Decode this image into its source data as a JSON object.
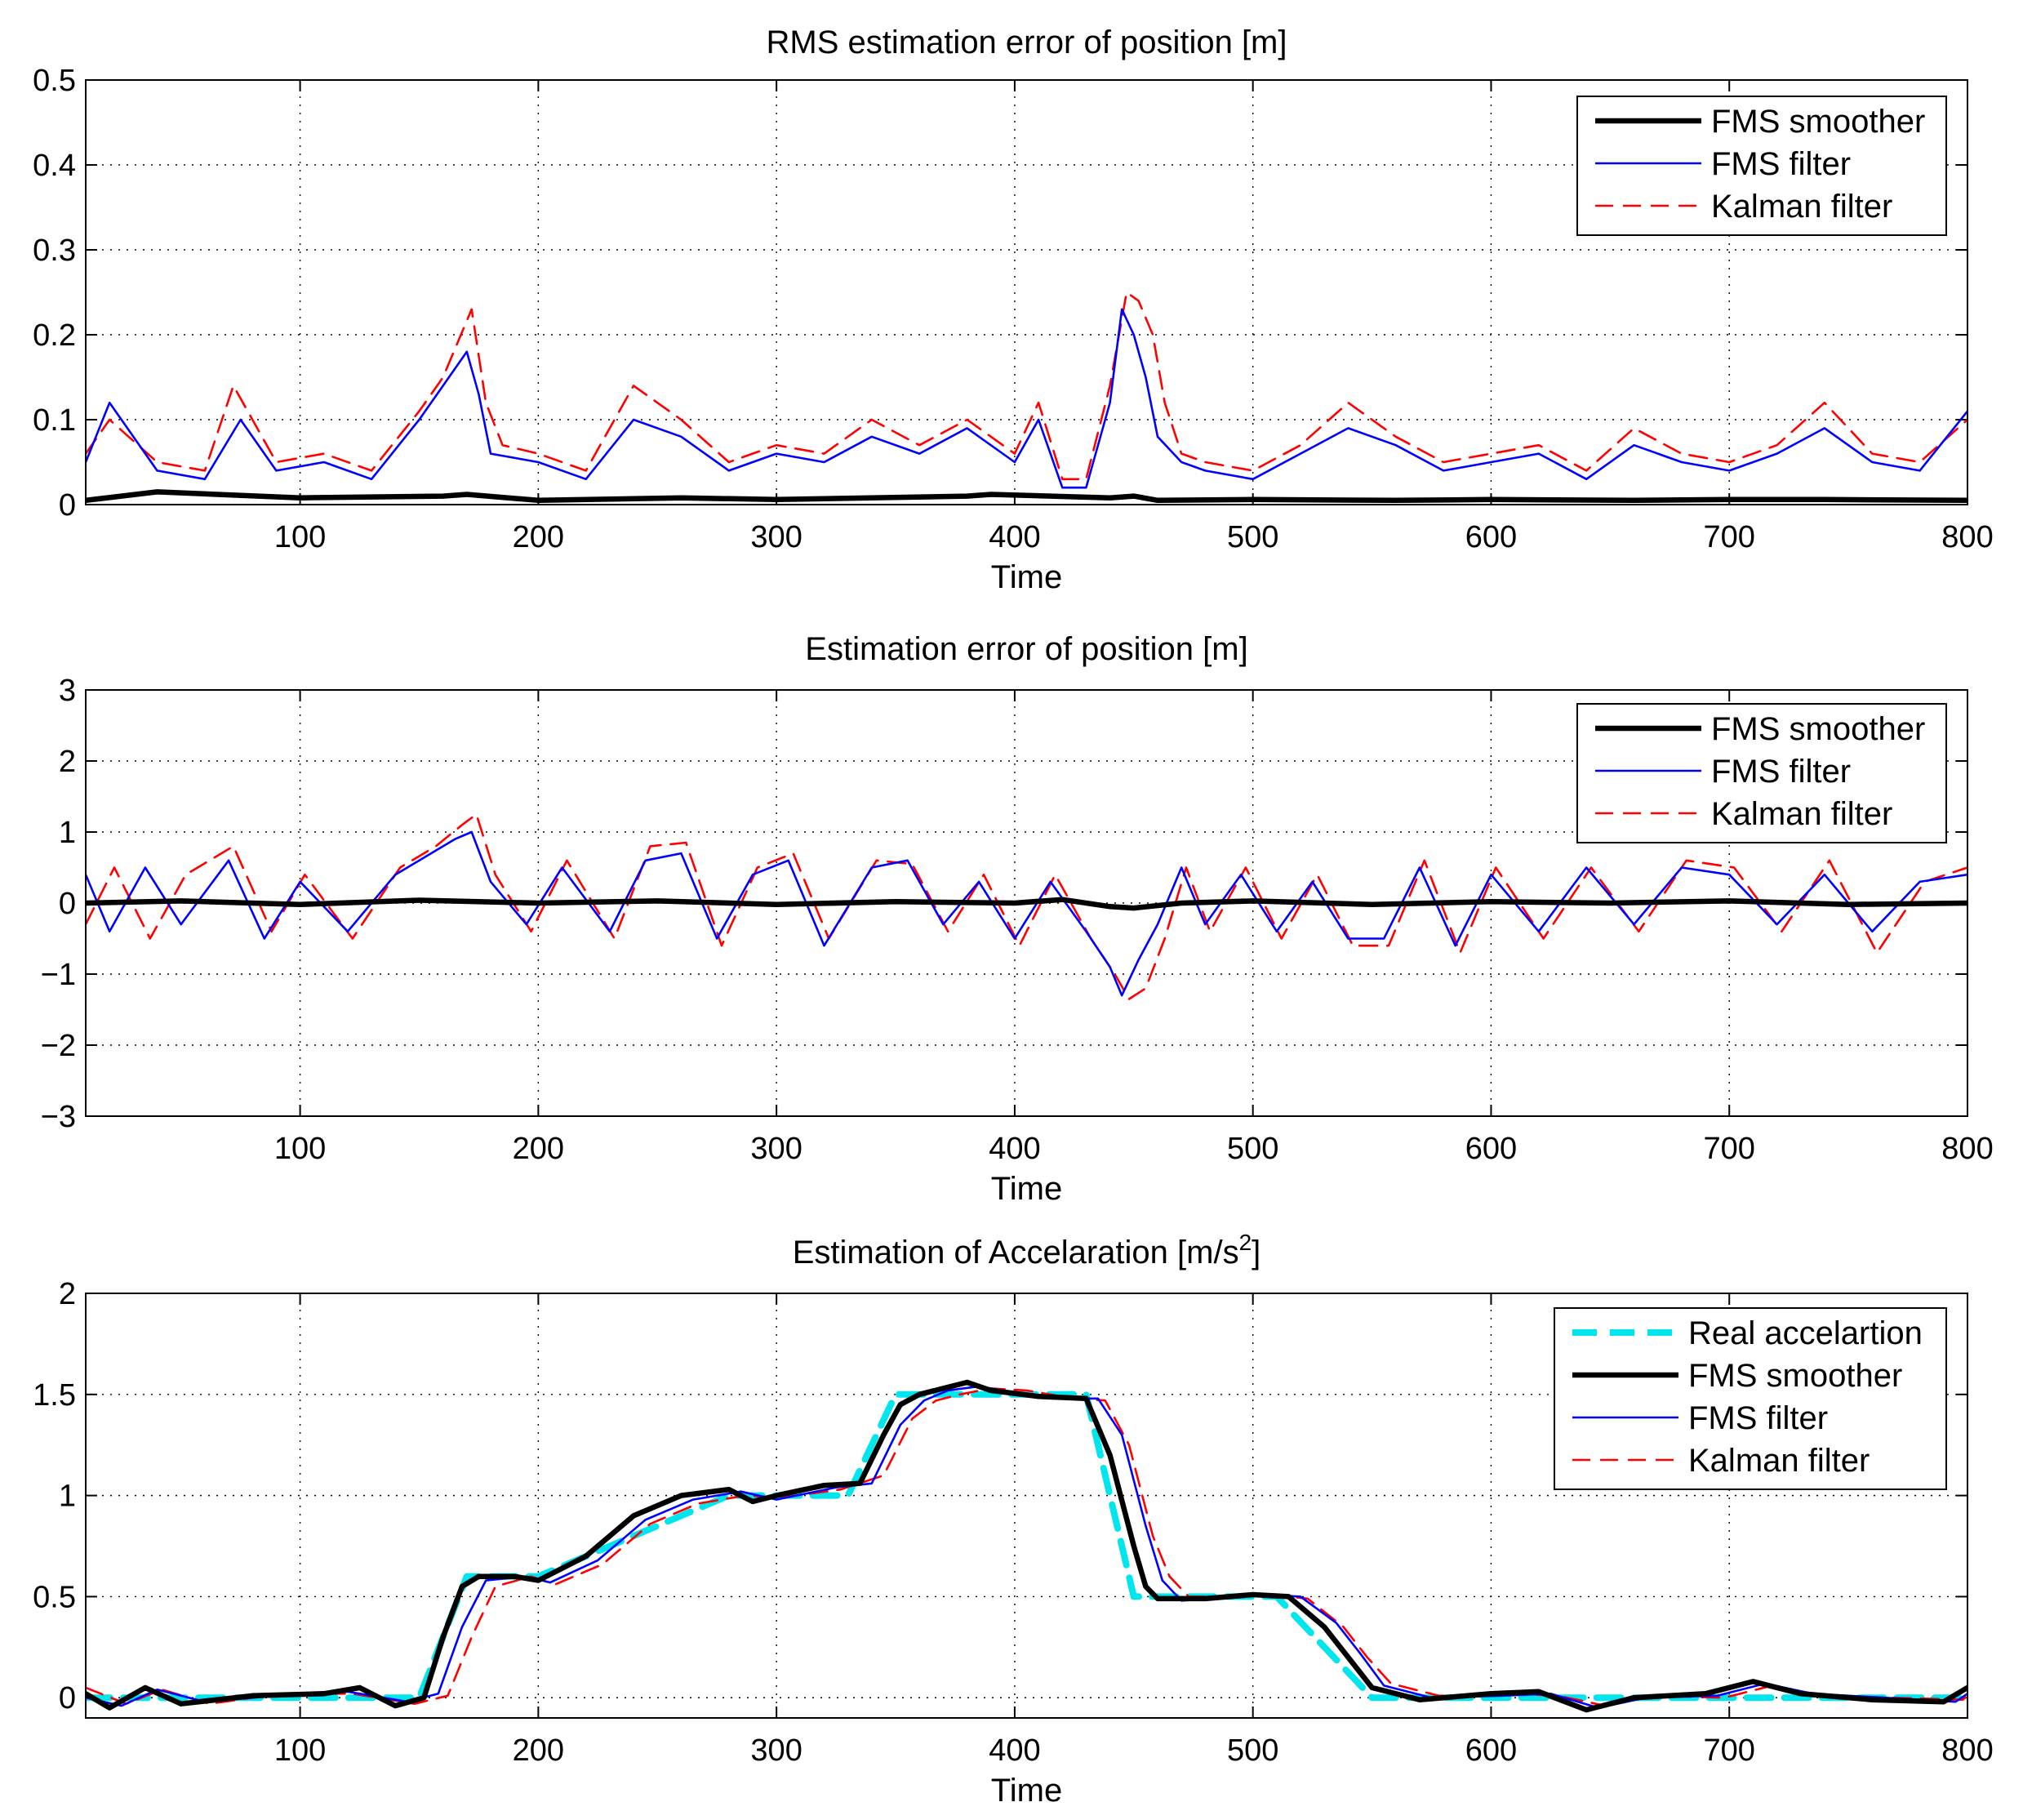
{
  "colors": {
    "smoother": "#000000",
    "filter": "#0000ff",
    "kalman": "#ff0000",
    "real": "#00e5ee"
  },
  "chart_data": [
    {
      "type": "line",
      "title": "RMS estimation error of position [m]",
      "xlabel": "Time",
      "ylabel": "",
      "xlim": [
        10,
        800
      ],
      "ylim": [
        0,
        0.5
      ],
      "xticks": [
        "100",
        "200",
        "300",
        "400",
        "500",
        "600",
        "700",
        "800"
      ],
      "yticks": [
        "0",
        "0.1",
        "0.2",
        "0.3",
        "0.4",
        "0.5"
      ],
      "grid": true,
      "legend_position": "top-right",
      "legend": [
        "FMS smoother",
        "FMS filter",
        "Kalman filter"
      ],
      "series": [
        {
          "name": "FMS smoother",
          "color": "#000000",
          "style": "thick",
          "x": [
            10,
            40,
            100,
            160,
            170,
            200,
            260,
            300,
            380,
            390,
            440,
            450,
            460,
            500,
            560,
            600,
            660,
            700,
            740,
            800
          ],
          "y": [
            0.005,
            0.015,
            0.008,
            0.01,
            0.012,
            0.005,
            0.008,
            0.006,
            0.01,
            0.012,
            0.008,
            0.01,
            0.005,
            0.006,
            0.005,
            0.006,
            0.005,
            0.006,
            0.006,
            0.005
          ]
        },
        {
          "name": "FMS filter",
          "color": "#0000ff",
          "style": "thin",
          "x": [
            10,
            20,
            40,
            60,
            75,
            90,
            110,
            130,
            150,
            160,
            170,
            175,
            180,
            200,
            220,
            240,
            260,
            280,
            300,
            320,
            340,
            360,
            380,
            400,
            410,
            420,
            430,
            440,
            445,
            450,
            455,
            460,
            470,
            480,
            500,
            520,
            540,
            560,
            580,
            600,
            620,
            640,
            660,
            680,
            700,
            720,
            740,
            760,
            780,
            800
          ],
          "y": [
            0.05,
            0.12,
            0.04,
            0.03,
            0.1,
            0.04,
            0.05,
            0.03,
            0.1,
            0.14,
            0.18,
            0.13,
            0.06,
            0.05,
            0.03,
            0.1,
            0.08,
            0.04,
            0.06,
            0.05,
            0.08,
            0.06,
            0.09,
            0.05,
            0.1,
            0.02,
            0.02,
            0.12,
            0.23,
            0.2,
            0.15,
            0.08,
            0.05,
            0.04,
            0.03,
            0.06,
            0.09,
            0.07,
            0.04,
            0.05,
            0.06,
            0.03,
            0.07,
            0.05,
            0.04,
            0.06,
            0.09,
            0.05,
            0.04,
            0.11
          ]
        },
        {
          "name": "Kalman filter",
          "color": "#ff0000",
          "style": "dashed",
          "x": [
            10,
            20,
            40,
            60,
            72,
            90,
            110,
            130,
            150,
            160,
            172,
            178,
            185,
            200,
            220,
            240,
            260,
            280,
            300,
            320,
            340,
            360,
            380,
            400,
            410,
            420,
            430,
            440,
            447,
            452,
            458,
            463,
            470,
            480,
            500,
            520,
            540,
            560,
            580,
            600,
            620,
            640,
            660,
            680,
            700,
            720,
            740,
            760,
            780,
            800
          ],
          "y": [
            0.06,
            0.1,
            0.05,
            0.04,
            0.14,
            0.05,
            0.06,
            0.04,
            0.11,
            0.15,
            0.23,
            0.12,
            0.07,
            0.06,
            0.04,
            0.14,
            0.1,
            0.05,
            0.07,
            0.06,
            0.1,
            0.07,
            0.1,
            0.06,
            0.12,
            0.03,
            0.03,
            0.14,
            0.25,
            0.24,
            0.2,
            0.12,
            0.06,
            0.05,
            0.04,
            0.07,
            0.12,
            0.08,
            0.05,
            0.06,
            0.07,
            0.04,
            0.09,
            0.06,
            0.05,
            0.07,
            0.12,
            0.06,
            0.05,
            0.1
          ]
        }
      ]
    },
    {
      "type": "line",
      "title": "Estimation error of position [m]",
      "xlabel": "Time",
      "ylabel": "",
      "xlim": [
        10,
        800
      ],
      "ylim": [
        -3,
        3
      ],
      "xticks": [
        "100",
        "200",
        "300",
        "400",
        "500",
        "600",
        "700",
        "800"
      ],
      "yticks": [
        "−3",
        "−2",
        "−1",
        "0",
        "1",
        "2",
        "3"
      ],
      "grid": true,
      "legend_position": "top-right",
      "legend": [
        "FMS smoother",
        "FMS filter",
        "Kalman filter"
      ],
      "series": [
        {
          "name": "FMS smoother",
          "color": "#000000",
          "style": "thick",
          "x": [
            10,
            50,
            100,
            150,
            200,
            250,
            300,
            350,
            400,
            420,
            440,
            450,
            470,
            500,
            550,
            600,
            650,
            700,
            750,
            800
          ],
          "y": [
            0.0,
            0.03,
            -0.02,
            0.04,
            0.0,
            0.03,
            -0.02,
            0.02,
            0.0,
            0.05,
            -0.05,
            -0.07,
            0.0,
            0.03,
            -0.02,
            0.02,
            0.0,
            0.03,
            -0.02,
            0.0
          ]
        },
        {
          "name": "FMS filter",
          "color": "#0000ff",
          "style": "thin",
          "x": [
            10,
            20,
            35,
            50,
            70,
            85,
            100,
            120,
            140,
            155,
            165,
            172,
            180,
            195,
            210,
            230,
            245,
            260,
            275,
            290,
            305,
            320,
            340,
            355,
            370,
            385,
            400,
            415,
            430,
            440,
            445,
            452,
            460,
            470,
            480,
            495,
            510,
            525,
            540,
            555,
            570,
            585,
            600,
            620,
            640,
            660,
            680,
            700,
            720,
            740,
            760,
            780,
            800
          ],
          "y": [
            0.4,
            -0.4,
            0.5,
            -0.3,
            0.6,
            -0.5,
            0.3,
            -0.4,
            0.4,
            0.7,
            0.9,
            1.0,
            0.3,
            -0.3,
            0.5,
            -0.4,
            0.6,
            0.7,
            -0.5,
            0.4,
            0.6,
            -0.6,
            0.5,
            0.6,
            -0.3,
            0.3,
            -0.5,
            0.3,
            -0.4,
            -0.9,
            -1.3,
            -0.8,
            -0.3,
            0.5,
            -0.3,
            0.4,
            -0.4,
            0.3,
            -0.5,
            -0.5,
            0.5,
            -0.6,
            0.4,
            -0.4,
            0.5,
            -0.3,
            0.5,
            0.4,
            -0.3,
            0.4,
            -0.4,
            0.3,
            0.4
          ]
        },
        {
          "name": "Kalman filter",
          "color": "#ff0000",
          "style": "dashed",
          "x": [
            10,
            22,
            37,
            52,
            72,
            88,
            102,
            122,
            142,
            157,
            168,
            174,
            182,
            197,
            212,
            232,
            247,
            262,
            277,
            292,
            307,
            322,
            342,
            357,
            372,
            387,
            402,
            417,
            432,
            442,
            448,
            455,
            463,
            472,
            482,
            497,
            512,
            527,
            542,
            557,
            572,
            587,
            602,
            622,
            642,
            662,
            682,
            702,
            722,
            742,
            762,
            782,
            800
          ],
          "y": [
            -0.3,
            0.5,
            -0.5,
            0.4,
            0.8,
            -0.4,
            0.4,
            -0.5,
            0.5,
            0.8,
            1.1,
            1.25,
            0.4,
            -0.4,
            0.6,
            -0.5,
            0.8,
            0.85,
            -0.6,
            0.5,
            0.7,
            -0.5,
            0.6,
            0.55,
            -0.4,
            0.4,
            -0.6,
            0.4,
            -0.5,
            -1.0,
            -1.35,
            -1.2,
            -0.5,
            0.5,
            -0.4,
            0.5,
            -0.5,
            0.4,
            -0.6,
            -0.6,
            0.6,
            -0.7,
            0.5,
            -0.5,
            0.5,
            -0.4,
            0.6,
            0.5,
            -0.4,
            0.6,
            -0.7,
            0.3,
            0.5
          ]
        }
      ]
    },
    {
      "type": "line",
      "title": "Estimation of Accelaration [m/s",
      "title_sup": "2",
      "title_end": "]",
      "xlabel": "Time",
      "ylabel": "",
      "xlim": [
        10,
        800
      ],
      "ylim": [
        -0.1,
        2
      ],
      "xticks": [
        "100",
        "200",
        "300",
        "400",
        "500",
        "600",
        "700",
        "800"
      ],
      "yticks": [
        "0",
        "0.5",
        "1",
        "1.5",
        "2"
      ],
      "grid": true,
      "legend_position": "top-right",
      "legend": [
        "Real accelartion",
        "FMS smoother",
        "FMS filter",
        "Kalman filter"
      ],
      "series": [
        {
          "name": "Real accelartion",
          "color": "#00e5ee",
          "style": "cyan-dashed",
          "x": [
            10,
            150,
            170,
            200,
            280,
            330,
            350,
            430,
            450,
            510,
            550,
            800
          ],
          "y": [
            0,
            0,
            0.6,
            0.6,
            1.0,
            1.0,
            1.5,
            1.5,
            0.5,
            0.5,
            0,
            0
          ]
        },
        {
          "name": "FMS smoother",
          "color": "#000000",
          "style": "thick",
          "x": [
            10,
            20,
            35,
            50,
            80,
            110,
            125,
            140,
            152,
            160,
            168,
            175,
            190,
            200,
            220,
            240,
            260,
            280,
            290,
            300,
            320,
            335,
            345,
            352,
            360,
            370,
            380,
            390,
            410,
            430,
            440,
            450,
            455,
            460,
            480,
            500,
            515,
            530,
            540,
            550,
            570,
            600,
            620,
            640,
            660,
            690,
            710,
            730,
            760,
            790,
            800
          ],
          "y": [
            0.02,
            -0.05,
            0.05,
            -0.03,
            0.01,
            0.02,
            0.05,
            -0.04,
            0.0,
            0.3,
            0.55,
            0.6,
            0.6,
            0.58,
            0.7,
            0.9,
            1.0,
            1.03,
            0.97,
            1.0,
            1.05,
            1.06,
            1.3,
            1.45,
            1.5,
            1.53,
            1.56,
            1.52,
            1.49,
            1.48,
            1.2,
            0.75,
            0.55,
            0.49,
            0.49,
            0.51,
            0.5,
            0.35,
            0.2,
            0.05,
            -0.01,
            0.02,
            0.03,
            -0.06,
            0.0,
            0.02,
            0.08,
            0.02,
            -0.01,
            -0.02,
            0.05
          ]
        },
        {
          "name": "FMS filter",
          "color": "#0000ff",
          "style": "thin",
          "x": [
            10,
            25,
            40,
            60,
            90,
            120,
            145,
            158,
            168,
            178,
            195,
            205,
            225,
            245,
            265,
            285,
            300,
            325,
            340,
            352,
            362,
            372,
            385,
            400,
            420,
            435,
            445,
            455,
            462,
            470,
            490,
            505,
            520,
            535,
            545,
            555,
            575,
            605,
            625,
            645,
            665,
            695,
            715,
            735,
            765,
            795,
            800
          ],
          "y": [
            0.0,
            -0.04,
            0.04,
            -0.02,
            0.01,
            0.03,
            -0.02,
            0.02,
            0.35,
            0.58,
            0.6,
            0.57,
            0.68,
            0.88,
            0.98,
            1.02,
            0.98,
            1.04,
            1.06,
            1.35,
            1.47,
            1.52,
            1.54,
            1.51,
            1.48,
            1.48,
            1.3,
            0.85,
            0.58,
            0.48,
            0.5,
            0.51,
            0.5,
            0.37,
            0.22,
            0.06,
            0.0,
            0.01,
            0.02,
            -0.05,
            0.0,
            0.01,
            0.07,
            0.02,
            0.0,
            -0.02,
            0.02
          ]
        },
        {
          "name": "Kalman filter",
          "color": "#ff0000",
          "style": "dashed",
          "x": [
            10,
            27,
            42,
            62,
            92,
            122,
            148,
            162,
            172,
            182,
            197,
            207,
            227,
            247,
            267,
            287,
            302,
            327,
            345,
            357,
            367,
            377,
            390,
            405,
            425,
            438,
            448,
            458,
            465,
            473,
            493,
            508,
            523,
            538,
            548,
            558,
            578,
            608,
            628,
            648,
            668,
            698,
            718,
            738,
            768,
            798,
            800
          ],
          "y": [
            0.05,
            -0.03,
            0.04,
            -0.03,
            0.02,
            0.02,
            -0.03,
            0.01,
            0.3,
            0.55,
            0.6,
            0.56,
            0.66,
            0.86,
            0.96,
            1.0,
            0.99,
            1.03,
            1.1,
            1.38,
            1.47,
            1.5,
            1.53,
            1.52,
            1.48,
            1.47,
            1.25,
            0.8,
            0.6,
            0.5,
            0.5,
            0.51,
            0.49,
            0.35,
            0.2,
            0.07,
            0.01,
            0.02,
            0.01,
            -0.04,
            0.01,
            0.0,
            0.06,
            0.01,
            0.0,
            -0.01,
            0.01
          ]
        }
      ]
    }
  ]
}
